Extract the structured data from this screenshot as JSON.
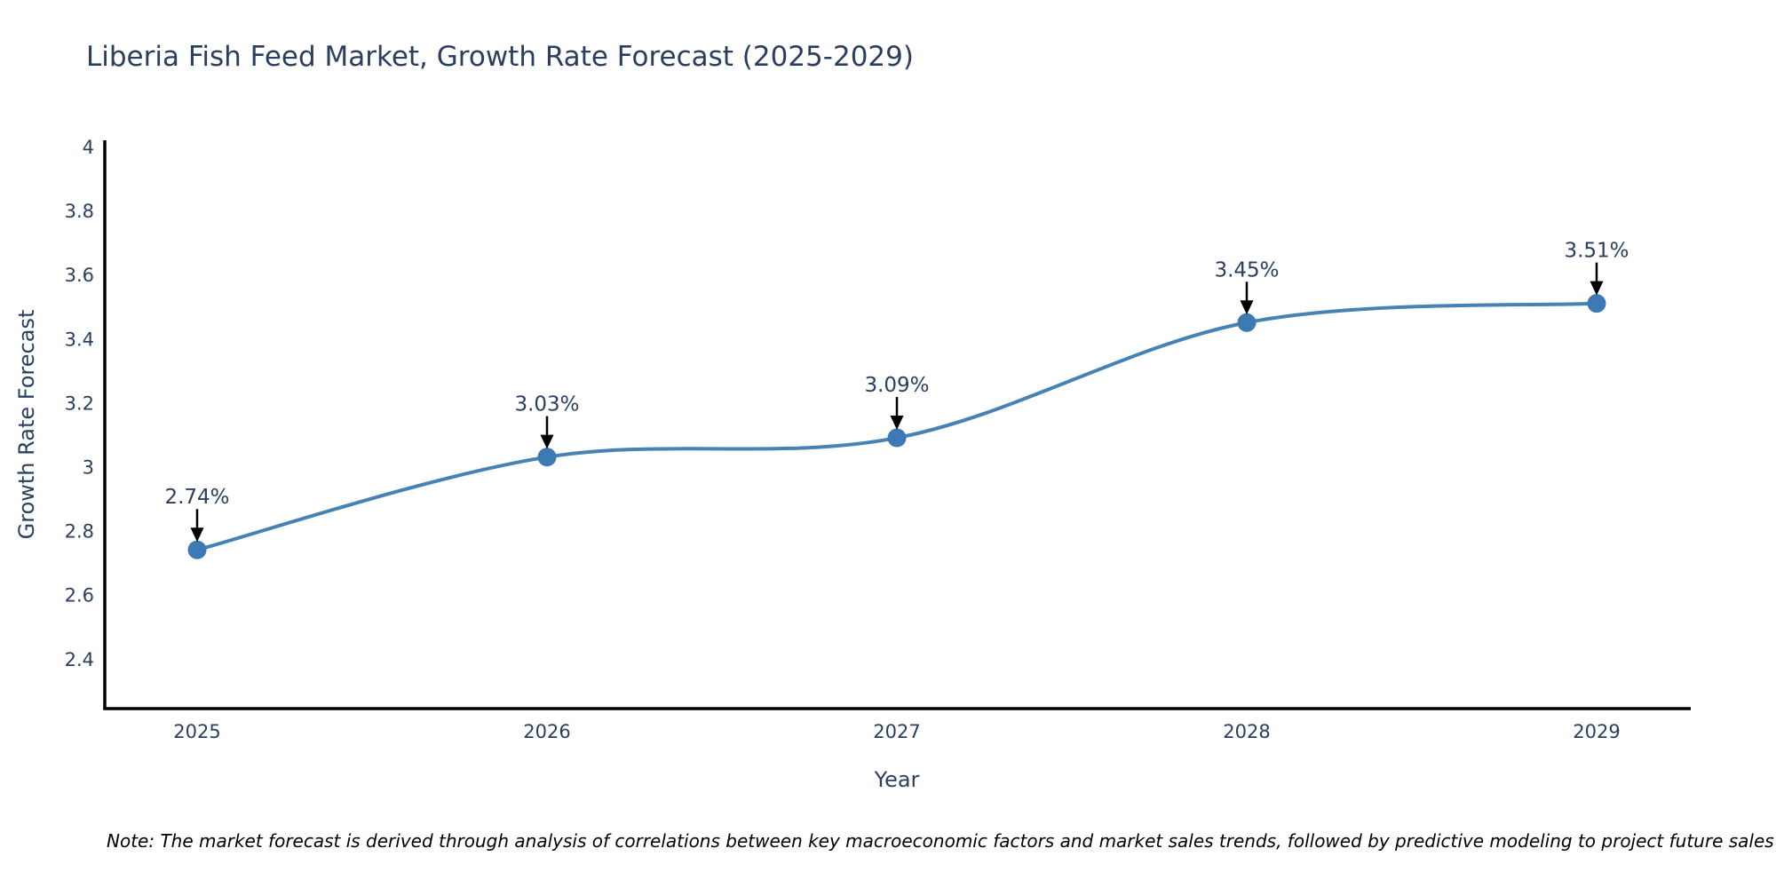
{
  "title": "Liberia Fish Feed Market, Growth Rate Forecast (2025-2029)",
  "note": "Note: The market forecast is derived through analysis of correlations between key macroeconomic factors and market sales trends, followed by predictive modeling to project future sales",
  "chart_data": {
    "type": "line",
    "title": "Liberia Fish Feed Market, Growth Rate Forecast (2025-2029)",
    "xlabel": "Year",
    "ylabel": "Growth Rate Forecast",
    "categories": [
      "2025",
      "2026",
      "2027",
      "2028",
      "2029"
    ],
    "values": [
      2.74,
      3.03,
      3.09,
      3.45,
      3.51
    ],
    "point_labels": [
      "2.74%",
      "3.03%",
      "3.09%",
      "3.45%",
      "3.51%"
    ],
    "ytick_labels": [
      "4",
      "3.8",
      "3.6",
      "3.4",
      "3.2",
      "3",
      "2.8",
      "2.6",
      "2.4"
    ],
    "ylim": [
      2.24,
      4.02
    ],
    "grid": false,
    "legend_position": "none",
    "line_shape": "spline",
    "colors": {
      "line": "#4682b4",
      "marker": "#3d79b2",
      "arrow": "#000000",
      "axis_line": "#000000",
      "tick_text": "#2a3f5f",
      "annotation_text": "#2a3f5f",
      "note_text": "#000000",
      "background": "#ffffff"
    }
  }
}
